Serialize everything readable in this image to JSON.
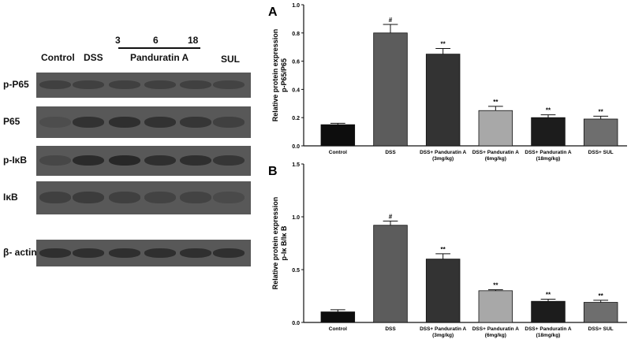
{
  "western_blot": {
    "dose_labels": [
      "3",
      "6",
      "18"
    ],
    "lane_labels": {
      "control": "Control",
      "dss": "DSS",
      "panduratin": "Panduratin A",
      "sul": "SUL"
    },
    "rows": [
      {
        "label": "p-P65",
        "intensity": [
          0.35,
          0.35,
          0.35,
          0.35,
          0.35,
          0.3
        ]
      },
      {
        "label": "P65",
        "intensity": [
          0.15,
          0.55,
          0.6,
          0.55,
          0.5,
          0.35
        ]
      },
      {
        "label": "p-IκB",
        "intensity": [
          0.25,
          0.65,
          0.7,
          0.6,
          0.6,
          0.5
        ]
      },
      {
        "label": "IκB",
        "intensity": [
          0.35,
          0.4,
          0.35,
          0.3,
          0.3,
          0.2
        ]
      },
      {
        "label": "β- actin",
        "intensity": [
          0.6,
          0.6,
          0.6,
          0.6,
          0.6,
          0.6
        ]
      }
    ]
  },
  "chart_data": [
    {
      "type": "bar",
      "panel": "A",
      "ylabel_line1": "Relative protein expression",
      "ylabel_line2": "p-P65/P65",
      "ylim": [
        0,
        1.0
      ],
      "yticks": [
        "0.0",
        "0.2",
        "0.4",
        "0.6",
        "0.8",
        "1.0"
      ],
      "categories": [
        [
          "Control"
        ],
        [
          "DSS"
        ],
        [
          "DSS+ Panduratin A",
          "(3mg/kg)"
        ],
        [
          "DSS+ Panduratin A",
          "(6mg/kg)"
        ],
        [
          "DSS+ Panduratin A",
          "(18mg/kg)"
        ],
        [
          "DSS+ SUL"
        ]
      ],
      "values": [
        0.15,
        0.8,
        0.65,
        0.25,
        0.2,
        0.19
      ],
      "errors": [
        0.01,
        0.06,
        0.04,
        0.03,
        0.02,
        0.02
      ],
      "annotations": [
        "",
        "#",
        "**",
        "**",
        "**",
        "**"
      ],
      "colors": [
        "#0d0d0d",
        "#5c5c5c",
        "#333333",
        "#a8a8a8",
        "#1c1c1c",
        "#6e6e6e"
      ],
      "grid": false
    },
    {
      "type": "bar",
      "panel": "B",
      "ylabel_line1": "Relative protein expression",
      "ylabel_line2": "p-Iκ B/Iκ B",
      "ylim": [
        0,
        1.5
      ],
      "yticks": [
        "0.0",
        "0.5",
        "1.0",
        "1.5"
      ],
      "categories": [
        [
          "Control"
        ],
        [
          "DSS"
        ],
        [
          "DSS+ Panduratin A",
          "(3mg/kg)"
        ],
        [
          "DSS+ Panduratin A",
          "(6mg/kg)"
        ],
        [
          "DSS+ Panduratin A",
          "(18mg/kg)"
        ],
        [
          "DSS+ SUL"
        ]
      ],
      "values": [
        0.1,
        0.92,
        0.6,
        0.3,
        0.2,
        0.19
      ],
      "errors": [
        0.02,
        0.04,
        0.05,
        0.01,
        0.02,
        0.02
      ],
      "annotations": [
        "",
        "#",
        "**",
        "**",
        "**",
        "**"
      ],
      "colors": [
        "#0d0d0d",
        "#5c5c5c",
        "#333333",
        "#a8a8a8",
        "#1c1c1c",
        "#6e6e6e"
      ],
      "grid": false
    }
  ]
}
